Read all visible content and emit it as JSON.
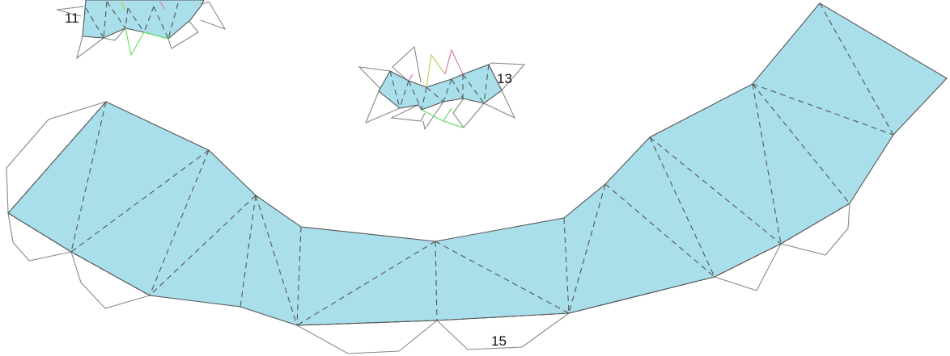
{
  "piece_labels": {
    "top_left": "11",
    "middle": "13",
    "bottom": "15"
  },
  "colors": {
    "face_fill": "#a9dfea",
    "edge": "#555555",
    "tab_outline": "#888888",
    "accent_green": "#66e066",
    "accent_pink": "#e07aa8",
    "accent_olive": "#c8c860"
  }
}
